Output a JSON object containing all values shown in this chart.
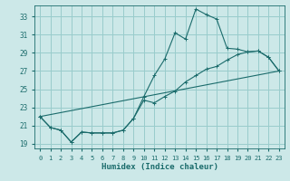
{
  "xlabel": "Humidex (Indice chaleur)",
  "background_color": "#cce8e8",
  "grid_color": "#99cccc",
  "line_color": "#1a6b6b",
  "xlim": [
    -0.5,
    23.5
  ],
  "ylim": [
    18.5,
    34.2
  ],
  "xticks": [
    0,
    1,
    2,
    3,
    4,
    5,
    6,
    7,
    8,
    9,
    10,
    11,
    12,
    13,
    14,
    15,
    16,
    17,
    18,
    19,
    20,
    21,
    22,
    23
  ],
  "yticks": [
    19,
    21,
    23,
    25,
    27,
    29,
    31,
    33
  ],
  "line1_x": [
    0,
    1,
    2,
    3,
    4,
    5,
    6,
    7,
    8,
    9,
    10,
    11,
    12,
    13,
    14,
    15,
    16,
    17,
    18,
    19,
    20,
    21,
    22,
    23
  ],
  "line1_y": [
    22.0,
    20.8,
    20.5,
    19.2,
    20.3,
    20.2,
    20.2,
    20.2,
    20.5,
    21.8,
    24.2,
    26.5,
    28.3,
    31.2,
    30.5,
    33.8,
    33.2,
    32.7,
    29.5,
    29.4,
    29.1,
    29.2,
    28.5,
    27.0
  ],
  "line2_x": [
    0,
    1,
    2,
    3,
    4,
    5,
    6,
    7,
    8,
    9,
    10,
    11,
    12,
    13,
    14,
    15,
    16,
    17,
    18,
    19,
    20,
    21,
    22,
    23
  ],
  "line2_y": [
    22.0,
    20.8,
    20.5,
    19.2,
    20.3,
    20.2,
    20.2,
    20.2,
    20.5,
    21.8,
    23.8,
    23.5,
    24.2,
    24.8,
    25.8,
    26.5,
    27.2,
    27.5,
    28.2,
    28.8,
    29.1,
    29.2,
    28.5,
    27.0
  ],
  "line3_x": [
    0,
    23
  ],
  "line3_y": [
    22.0,
    27.0
  ]
}
